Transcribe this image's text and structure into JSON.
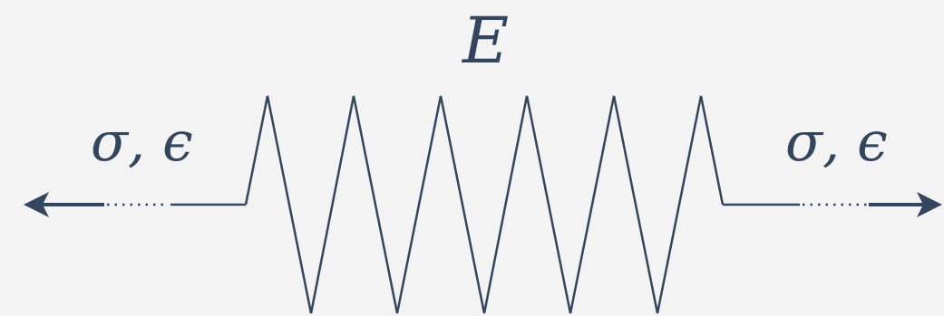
{
  "diagram": {
    "modulus_label": "E",
    "left_load_label": "σ, ϵ",
    "right_load_label": "σ, ϵ",
    "stroke_color": "#34455e",
    "background_color": "#f3f3f3"
  }
}
